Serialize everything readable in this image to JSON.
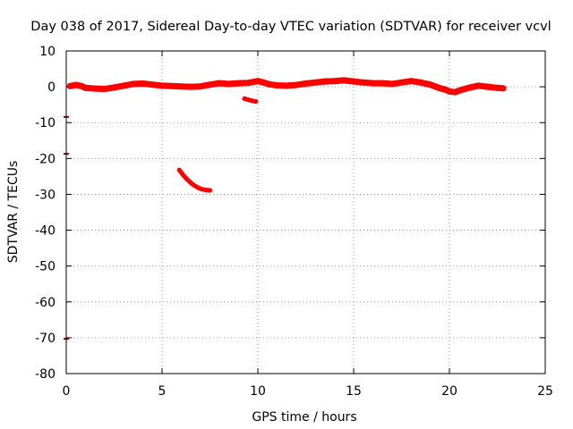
{
  "chart_data": {
    "type": "scatter",
    "title": "Day 038 of 2017, Sidereal Day-to-day VTEC variation (SDTVAR) for receiver vcvl",
    "xlabel": "GPS time / hours",
    "ylabel": "SDTVAR / TECUs",
    "xlim": [
      0,
      25
    ],
    "ylim": [
      -80,
      10
    ],
    "xticks": [
      0,
      5,
      10,
      15,
      20,
      25
    ],
    "yticks": [
      10,
      0,
      -10,
      -20,
      -30,
      -40,
      -50,
      -60,
      -70,
      -80
    ],
    "grid": true,
    "legend": "none",
    "series": [
      {
        "name": "SDTVAR main track",
        "color": "#ff0000",
        "x": [
          0.2,
          0.5,
          0.8,
          1.0,
          1.5,
          2.0,
          2.5,
          3.0,
          3.5,
          4.0,
          4.5,
          5.0,
          5.5,
          6.0,
          6.5,
          7.0,
          7.5,
          8.0,
          8.5,
          9.0,
          9.5,
          10.0,
          10.3,
          10.6,
          11.0,
          11.5,
          12.0,
          12.5,
          13.0,
          13.5,
          14.0,
          14.5,
          15.0,
          15.5,
          16.0,
          16.5,
          17.0,
          17.5,
          18.0,
          18.5,
          19.0,
          19.5,
          19.8,
          20.0,
          20.3,
          20.6,
          21.0,
          21.5,
          22.0,
          22.5,
          22.8
        ],
        "y": [
          0.2,
          0.5,
          0.2,
          -0.3,
          -0.5,
          -0.6,
          -0.2,
          0.3,
          0.8,
          0.9,
          0.6,
          0.3,
          0.2,
          0.1,
          0.0,
          0.1,
          0.6,
          1.0,
          0.8,
          1.0,
          1.1,
          1.6,
          1.2,
          0.7,
          0.4,
          0.3,
          0.5,
          0.9,
          1.2,
          1.5,
          1.6,
          1.8,
          1.5,
          1.2,
          1.0,
          1.0,
          0.8,
          1.2,
          1.6,
          1.2,
          0.6,
          -0.4,
          -0.8,
          -1.3,
          -1.5,
          -0.9,
          -0.3,
          0.3,
          0.0,
          -0.3,
          -0.4
        ]
      },
      {
        "name": "SDTVAR arc near 9.5 h",
        "color": "#ff0000",
        "x": [
          9.3,
          9.5,
          9.7,
          9.9
        ],
        "y": [
          -3.3,
          -3.6,
          -3.9,
          -4.1
        ]
      },
      {
        "name": "SDTVAR descending arc",
        "color": "#ff0000",
        "x": [
          5.9,
          6.1,
          6.3,
          6.5,
          6.7,
          6.9,
          7.1,
          7.3,
          7.5
        ],
        "y": [
          -23.2,
          -24.6,
          -25.8,
          -26.8,
          -27.6,
          -28.2,
          -28.6,
          -28.8,
          -28.9
        ]
      },
      {
        "name": "SDTVAR isolated points",
        "color": "#8b0000",
        "x": [
          0.0,
          0.0,
          0.0
        ],
        "y": [
          -8.4,
          -18.7,
          -70.3
        ]
      }
    ]
  }
}
